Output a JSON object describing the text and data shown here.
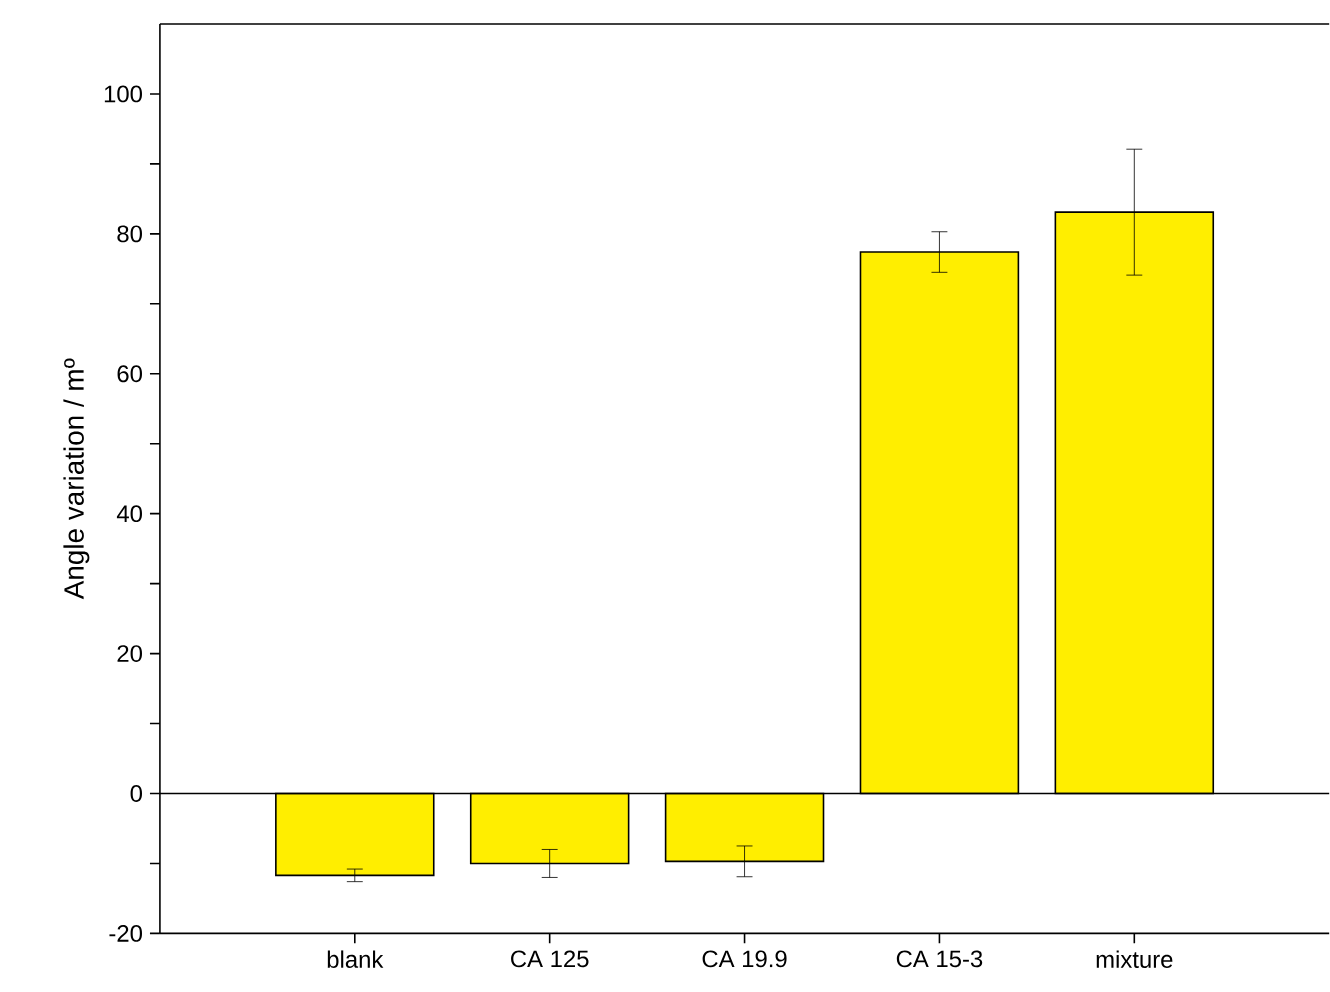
{
  "chart_data": {
    "type": "bar",
    "ylabel": "Angle variation / mº",
    "categories": [
      "blank",
      "CA 125",
      "CA 19.9",
      "CA 15-3",
      "mixture"
    ],
    "values": [
      -11.7,
      -10.0,
      -9.7,
      77.4,
      83.1
    ],
    "errors": [
      0.9,
      2.0,
      2.2,
      2.9,
      9.0
    ],
    "color": "#ffee00",
    "ylim": [
      -20,
      110
    ],
    "yticks": [
      -20,
      {
        "value": -10,
        "label": null
      },
      0,
      {
        "value": 10,
        "label": null
      },
      20,
      {
        "value": 30,
        "label": null
      },
      40,
      {
        "value": 50,
        "label": null
      },
      60,
      {
        "value": 70,
        "label": null
      },
      80,
      {
        "value": 90,
        "label": null
      },
      100
    ],
    "orientation": "vertical"
  }
}
